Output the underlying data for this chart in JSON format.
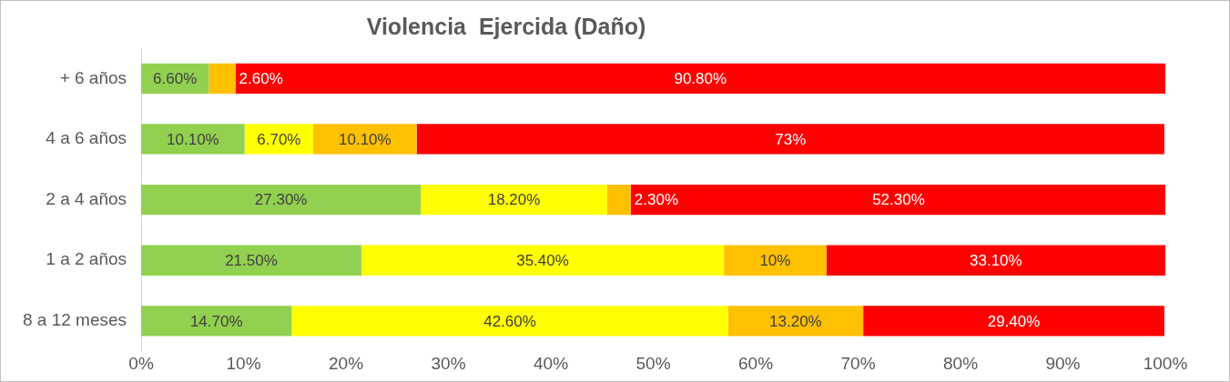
{
  "chart_data": {
    "type": "bar",
    "orientation": "horizontal",
    "stacked": true,
    "title": "Violencia  Ejercida (Daño)",
    "categories": [
      "+ 6 años",
      "4 a 6 años",
      "2 a 4 años",
      "1 a 2 años",
      "8 a 12 meses"
    ],
    "series": [
      {
        "color": "#92d050",
        "values": [
          6.6,
          10.1,
          27.3,
          21.5,
          14.7
        ],
        "value_labels": [
          "6.60%",
          "10.10%",
          "27.30%",
          "21.50%",
          "14.70%"
        ]
      },
      {
        "color": "#ffff00",
        "values": [
          null,
          6.7,
          18.2,
          35.4,
          42.6
        ],
        "value_labels": [
          null,
          "6.70%",
          "18.20%",
          "35.40%",
          "42.60%"
        ]
      },
      {
        "color": "#ffc000",
        "values": [
          2.6,
          10.1,
          2.3,
          10,
          13.2
        ],
        "value_labels": [
          "2.60%",
          "10.10%",
          "2.30%",
          "10%",
          "13.20%"
        ]
      },
      {
        "color": "#ff0000",
        "values": [
          90.8,
          73,
          52.3,
          33.1,
          29.4
        ],
        "value_labels": [
          "90.80%",
          "73%",
          "52.30%",
          "33.10%",
          "29.40%"
        ]
      }
    ],
    "xlim": [
      0,
      100
    ],
    "xticks": [
      {
        "value": 0,
        "label": "0%"
      },
      {
        "value": 10,
        "label": "10%"
      },
      {
        "value": 20,
        "label": "20%"
      },
      {
        "value": 30,
        "label": "30%"
      },
      {
        "value": 40,
        "label": "40%"
      },
      {
        "value": 50,
        "label": "50%"
      },
      {
        "value": 60,
        "label": "60%"
      },
      {
        "value": 70,
        "label": "70%"
      },
      {
        "value": 80,
        "label": "80%"
      },
      {
        "value": 90,
        "label": "90%"
      },
      {
        "value": 100,
        "label": "100%"
      }
    ],
    "grid": false,
    "legend": false
  }
}
